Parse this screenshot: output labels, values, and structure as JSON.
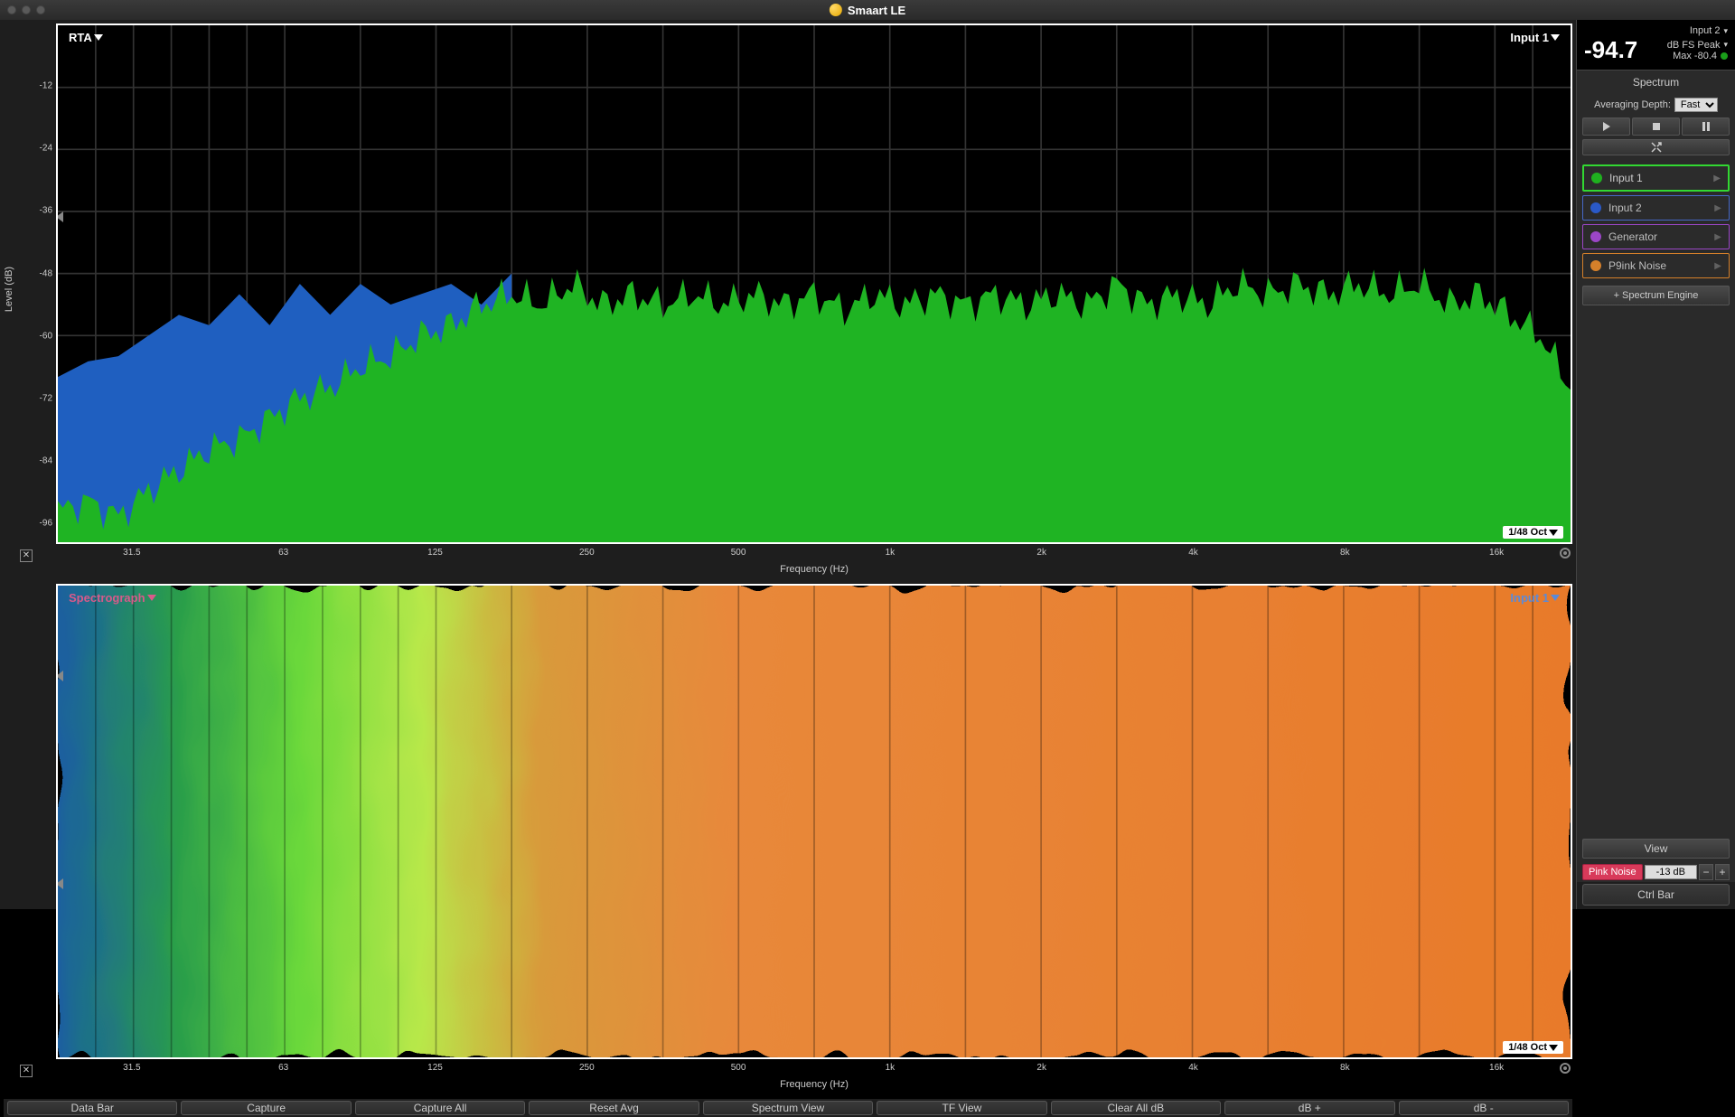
{
  "app": {
    "title": "Smaart LE"
  },
  "meter": {
    "input_label": "Input 2",
    "value": "-94.7",
    "unit_label": "dB FS Peak",
    "max_label": "Max -80.4"
  },
  "spectrum_panel": {
    "title": "Spectrum",
    "avg_label": "Averaging Depth:",
    "avg_value": "Fast",
    "add_engine": "+ Spectrum Engine"
  },
  "inputs": [
    {
      "label": "Input 1",
      "color": "#1fb11f",
      "border": "#32d832",
      "selected": true
    },
    {
      "label": "Input 2",
      "color": "#2a5fd8",
      "border": "#4a6fd8",
      "selected": false
    },
    {
      "label": "Generator",
      "color": "#a84ad8",
      "border": "#a84ad8",
      "selected": false
    },
    {
      "label": "P9ink Noise",
      "color": "#e88a2a",
      "border": "#e88a2a",
      "selected": false
    }
  ],
  "rta_chart": {
    "label_tl": "RTA",
    "label_tr": "Input 1",
    "label_br": "1/48 Oct",
    "y_label": "Level (dB)",
    "x_label": "Frequency (Hz)",
    "y_ticks": [
      -12,
      -24,
      -36,
      -48,
      -60,
      -72,
      -84,
      -96
    ],
    "y_min": -100,
    "y_max": 0,
    "x_ticks": [
      "31.5",
      "63",
      "125",
      "250",
      "500",
      "1k",
      "2k",
      "4k",
      "8k",
      "16k"
    ],
    "marker_y": -36,
    "green_color": "#1fb423",
    "blue_color": "#1f5fc0",
    "grid_color": "#2a2a2a",
    "series_blue": [
      {
        "x": 0,
        "y": -68
      },
      {
        "x": 2,
        "y": -65
      },
      {
        "x": 4,
        "y": -64
      },
      {
        "x": 6,
        "y": -60
      },
      {
        "x": 8,
        "y": -56
      },
      {
        "x": 10,
        "y": -58
      },
      {
        "x": 12,
        "y": -52
      },
      {
        "x": 14,
        "y": -58
      },
      {
        "x": 16,
        "y": -50
      },
      {
        "x": 18,
        "y": -56
      },
      {
        "x": 20,
        "y": -50
      },
      {
        "x": 22,
        "y": -54
      },
      {
        "x": 24,
        "y": -52
      },
      {
        "x": 26,
        "y": -50
      },
      {
        "x": 28,
        "y": -54
      },
      {
        "x": 30,
        "y": -48
      }
    ],
    "series_green": [
      {
        "x": 0,
        "y": -94
      },
      {
        "x": 2,
        "y": -92
      },
      {
        "x": 4,
        "y": -95
      },
      {
        "x": 6,
        "y": -90
      },
      {
        "x": 8,
        "y": -86
      },
      {
        "x": 10,
        "y": -82
      },
      {
        "x": 12,
        "y": -80
      },
      {
        "x": 14,
        "y": -76
      },
      {
        "x": 16,
        "y": -72
      },
      {
        "x": 18,
        "y": -70
      },
      {
        "x": 20,
        "y": -66
      },
      {
        "x": 22,
        "y": -64
      },
      {
        "x": 24,
        "y": -60
      },
      {
        "x": 26,
        "y": -58
      },
      {
        "x": 28,
        "y": -54
      },
      {
        "x": 30,
        "y": -52
      },
      {
        "x": 32,
        "y": -54
      },
      {
        "x": 34,
        "y": -50
      },
      {
        "x": 36,
        "y": -54
      },
      {
        "x": 38,
        "y": -52
      },
      {
        "x": 40,
        "y": -54
      },
      {
        "x": 42,
        "y": -52
      },
      {
        "x": 44,
        "y": -54
      },
      {
        "x": 46,
        "y": -52
      },
      {
        "x": 48,
        "y": -54
      },
      {
        "x": 50,
        "y": -52
      },
      {
        "x": 52,
        "y": -55
      },
      {
        "x": 54,
        "y": -52
      },
      {
        "x": 56,
        "y": -54
      },
      {
        "x": 58,
        "y": -52
      },
      {
        "x": 60,
        "y": -54
      },
      {
        "x": 62,
        "y": -52
      },
      {
        "x": 64,
        "y": -54
      },
      {
        "x": 66,
        "y": -52
      },
      {
        "x": 68,
        "y": -54
      },
      {
        "x": 70,
        "y": -50
      },
      {
        "x": 72,
        "y": -54
      },
      {
        "x": 74,
        "y": -52
      },
      {
        "x": 76,
        "y": -54
      },
      {
        "x": 78,
        "y": -50
      },
      {
        "x": 80,
        "y": -52
      },
      {
        "x": 82,
        "y": -50
      },
      {
        "x": 84,
        "y": -52
      },
      {
        "x": 86,
        "y": -50
      },
      {
        "x": 88,
        "y": -52
      },
      {
        "x": 90,
        "y": -50
      },
      {
        "x": 92,
        "y": -54
      },
      {
        "x": 94,
        "y": -52
      },
      {
        "x": 96,
        "y": -56
      },
      {
        "x": 98,
        "y": -60
      },
      {
        "x": 100,
        "y": -70
      }
    ]
  },
  "spectro_chart": {
    "label_tl": "Spectrograph",
    "label_tl_color": "#d85a8a",
    "label_tr": "Input 1",
    "label_tr_color": "#5a8ad8",
    "label_br": "1/48 Oct",
    "x_label": "Frequency (Hz)",
    "x_ticks": [
      "31.5",
      "63",
      "125",
      "250",
      "500",
      "1k",
      "2k",
      "4k",
      "8k",
      "16k"
    ],
    "marker1_y": 18,
    "marker2_y": 62,
    "grid_color": "#000000",
    "heat_stops": [
      {
        "p": 0,
        "c": "#1a5fa0"
      },
      {
        "p": 8,
        "c": "#2a9e4a"
      },
      {
        "p": 16,
        "c": "#6ad83a"
      },
      {
        "p": 24,
        "c": "#b8e84a"
      },
      {
        "p": 32,
        "c": "#d89a3a"
      },
      {
        "p": 45,
        "c": "#e8883a"
      },
      {
        "p": 100,
        "c": "#e87a2a"
      }
    ]
  },
  "bottom_buttons": [
    "Data Bar",
    "Capture",
    "Capture All",
    "Reset Avg",
    "Spectrum View",
    "TF View",
    "Clear All dB",
    "dB +",
    "dB -"
  ],
  "view_btn": "View",
  "noise": {
    "label": "Pink Noise",
    "value": "-13 dB"
  },
  "ctrl_bar": "Ctrl Bar"
}
